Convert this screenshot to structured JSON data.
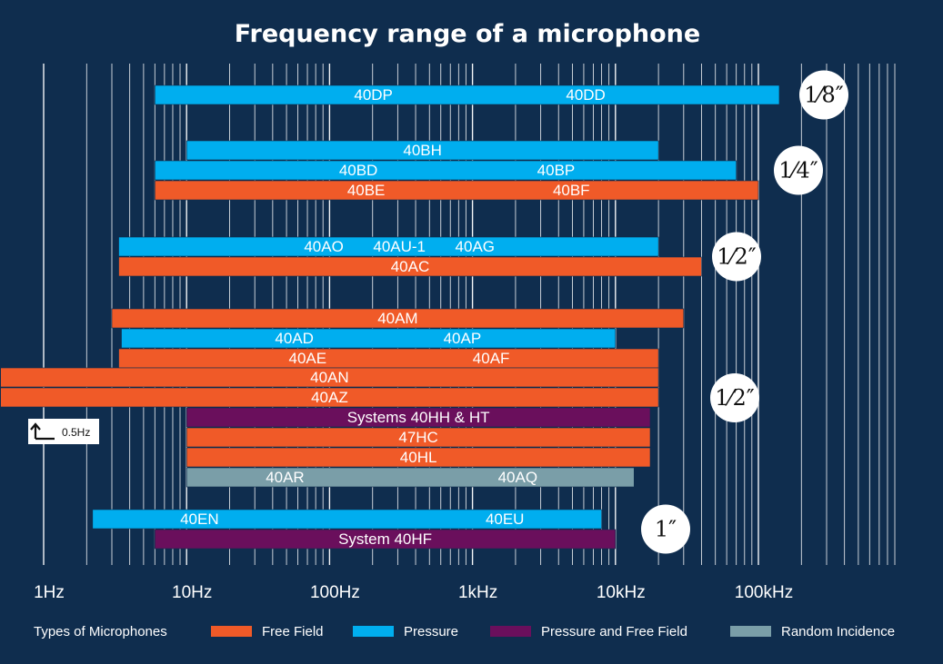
{
  "chart_data": {
    "type": "bar",
    "orientation": "horizontal",
    "title": "Frequency range of a microphone",
    "x_scale": "log",
    "xlim_hz": [
      1,
      1000000
    ],
    "x_ticks": [
      {
        "value": 1,
        "label": "1Hz"
      },
      {
        "value": 10,
        "label": "10Hz"
      },
      {
        "value": 100,
        "label": "100Hz"
      },
      {
        "value": 1000,
        "label": "1kHz"
      },
      {
        "value": 10000,
        "label": "10kHz"
      },
      {
        "value": 100000,
        "label": "100kHz"
      }
    ],
    "grid": true,
    "colors": {
      "Free Field": "#f05a28",
      "Pressure": "#00aeef",
      "Pressure and Free Field": "#6a0f5c",
      "Random Incidence": "#7a9ea8"
    },
    "bars": [
      {
        "labels": [
          "40DP",
          "40DD"
        ],
        "type": "Pressure",
        "start_hz": 6,
        "end_hz": 140000
      },
      {
        "labels": [
          "40BH"
        ],
        "type": "Pressure",
        "start_hz": 10,
        "end_hz": 20000
      },
      {
        "labels": [
          "40BD",
          "40BP"
        ],
        "type": "Pressure",
        "start_hz": 6,
        "end_hz": 70000
      },
      {
        "labels": [
          "40BE",
          "40BF"
        ],
        "type": "Free Field",
        "start_hz": 6,
        "end_hz": 100000
      },
      {
        "labels": [
          "40AO",
          "40AU-1",
          "40AG"
        ],
        "type": "Pressure",
        "start_hz": 3.35,
        "end_hz": 20000
      },
      {
        "labels": [
          "40AC"
        ],
        "type": "Free Field",
        "start_hz": 3.35,
        "end_hz": 40000
      },
      {
        "labels": [
          "40AM"
        ],
        "type": "Free Field",
        "start_hz": 3,
        "end_hz": 30000
      },
      {
        "labels": [
          "40AD",
          "40AP"
        ],
        "type": "Pressure",
        "start_hz": 3.5,
        "end_hz": 10000
      },
      {
        "labels": [
          "40AE",
          "40AF"
        ],
        "type": "Free Field",
        "start_hz": 3.35,
        "end_hz": 20000
      },
      {
        "labels": [
          "40AN"
        ],
        "type": "Free Field",
        "start_hz": 0.5,
        "end_hz": 20000
      },
      {
        "labels": [
          "40AZ"
        ],
        "type": "Free Field",
        "start_hz": 0.5,
        "end_hz": 20000
      },
      {
        "labels": [
          "Systems 40HH & HT"
        ],
        "type": "Pressure and Free Field",
        "start_hz": 10,
        "end_hz": 17500
      },
      {
        "labels": [
          "47HC"
        ],
        "type": "Free Field",
        "start_hz": 10,
        "end_hz": 17500
      },
      {
        "labels": [
          "40HL"
        ],
        "type": "Free Field",
        "start_hz": 10,
        "end_hz": 17500
      },
      {
        "labels": [
          "40AR",
          "40AQ"
        ],
        "type": "Random Incidence",
        "start_hz": 10,
        "end_hz": 13500
      },
      {
        "labels": [
          "40EN",
          "40EU"
        ],
        "type": "Pressure",
        "start_hz": 2.2,
        "end_hz": 8000
      },
      {
        "labels": [
          "System 40HF"
        ],
        "type": "Pressure and Free Field",
        "start_hz": 6,
        "end_hz": 10000
      }
    ],
    "size_badges": [
      {
        "label": "1⁄8″",
        "group_rows": [
          0,
          0
        ]
      },
      {
        "label": "1⁄4″",
        "group_rows": [
          1,
          3
        ]
      },
      {
        "label": "1⁄2″",
        "group_rows": [
          4,
          5
        ]
      },
      {
        "label": "1⁄2″",
        "group_rows": [
          6,
          14
        ]
      },
      {
        "label": "1″",
        "group_rows": [
          15,
          16
        ]
      }
    ],
    "annotation": "0.5Hz",
    "legend": {
      "title": "Types of Microphones",
      "placement": "bottom",
      "entries": [
        "Free Field",
        "Pressure",
        "Pressure and Free Field",
        "Random Incidence"
      ]
    }
  }
}
